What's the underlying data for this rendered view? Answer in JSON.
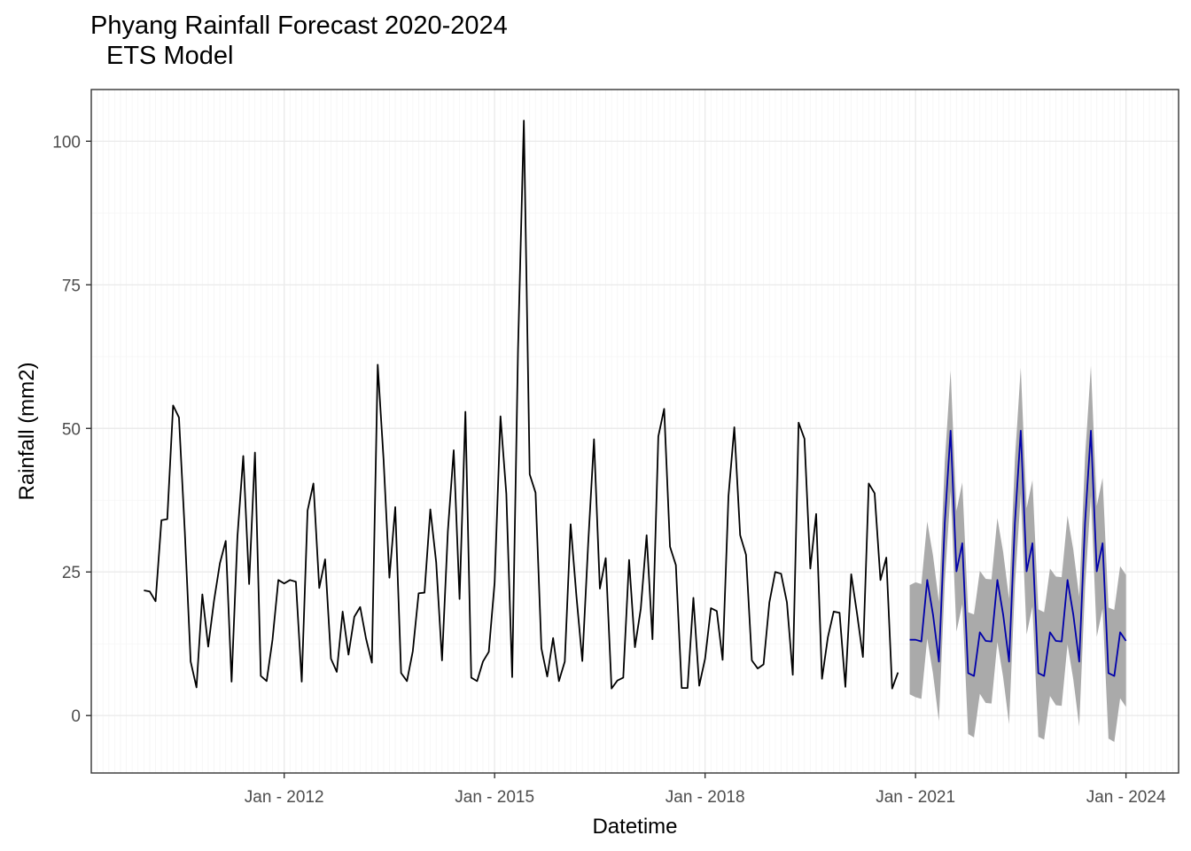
{
  "page": {
    "title": "Phyang Rainfall Forecast 2020-2024",
    "subtitle": "ETS Model"
  },
  "chart_data": {
    "type": "line",
    "title": "Phyang Rainfall Forecast 2020-2024",
    "subtitle": "ETS Model",
    "xlabel": "Datetime",
    "ylabel": "Rainfall (mm2)",
    "x_tick_labels": [
      "Jan - 2012",
      "Jan - 2015",
      "Jan - 2018",
      "Jan - 2021",
      "Jan - 2024"
    ],
    "x_tick_years": [
      2012,
      2015,
      2018,
      2021,
      2024
    ],
    "y_ticks": [
      0,
      25,
      50,
      75,
      100
    ],
    "xlim": [
      "2009-04",
      "2024-10"
    ],
    "ylim": [
      -10,
      109
    ],
    "grid": true,
    "colors": {
      "history": "#000000",
      "forecast": "#0000aa",
      "interval": "#aaaaaa",
      "grid_major": "#ebebeb",
      "grid_minor": "#f5f5f5",
      "panel_border": "#333333"
    },
    "history_start": "2010-01",
    "history_values": [
      21.8,
      21.6,
      19.9,
      34,
      34.2,
      54,
      51.9,
      32,
      9.4,
      4.9,
      21.1,
      12,
      20,
      26.5,
      30.4,
      5.9,
      31.1,
      45.2,
      22.9,
      45.8,
      6.9,
      6,
      13.2,
      23.6,
      23,
      23.6,
      23.3,
      5.9,
      35.7,
      40.4,
      22.2,
      27.2,
      9.9,
      7.6,
      18.1,
      10.6,
      17.2,
      18.9,
      13.4,
      9.2,
      61.1,
      44.6,
      24,
      36.3,
      7.4,
      6,
      11.2,
      21.3,
      21.4,
      35.9,
      26.7,
      9.6,
      32.1,
      46.2,
      20.3,
      52.9,
      6.6,
      6,
      9.4,
      11.1,
      23.2,
      52.1,
      38.6,
      6.7,
      63.7,
      103.6,
      42,
      38.8,
      11.7,
      6.8,
      13.5,
      6,
      9.4,
      33.3,
      20.7,
      9.5,
      29.9,
      48.1,
      22.1,
      27.4,
      4.7,
      6.1,
      6.6,
      27.1,
      11.9,
      18.6,
      31.4,
      13.3,
      48.6,
      53.4,
      29.4,
      26.2,
      4.8,
      4.8,
      20.5,
      5.2,
      9.9,
      18.7,
      18.2,
      9.7,
      38.2,
      50.2,
      31.4,
      28,
      9.6,
      8.2,
      8.9,
      19.7,
      25,
      24.7,
      19.7,
      7.1,
      51,
      48.2,
      25.6,
      35.1,
      6.4,
      13.6,
      18.1,
      17.9,
      5,
      24.6,
      17.7,
      10.2,
      40.4,
      38.7,
      23.6,
      27.5,
      4.7,
      7.5
    ],
    "forecast_start": "2020-12",
    "forecast_values": [
      13.2,
      13.2,
      12.9,
      23.6,
      17.5,
      9.4,
      33.6,
      49.6,
      25.1,
      30,
      7.4,
      6.9,
      14.5,
      13,
      12.9,
      23.6,
      17.5,
      9.4,
      33.6,
      49.6,
      25.1,
      30,
      7.4,
      6.9,
      14.5,
      13,
      12.9,
      23.6,
      17.5,
      9.4,
      33.6,
      49.6,
      25.1,
      30,
      7.4,
      6.9,
      14.5,
      13
    ],
    "interval_half_width": [
      9.5,
      10,
      10,
      10.2,
      10.3,
      10.4,
      10.4,
      10.5,
      10.5,
      10.6,
      10.6,
      10.7,
      10.7,
      10.8,
      10.8,
      10.8,
      10.9,
      10.9,
      10.9,
      11,
      11,
      11,
      11.1,
      11.1,
      11.1,
      11.2,
      11.2,
      11.2,
      11.3,
      11.3,
      11.3,
      11.3,
      11.4,
      11.4,
      11.4,
      11.5,
      11.5,
      11.5
    ]
  }
}
